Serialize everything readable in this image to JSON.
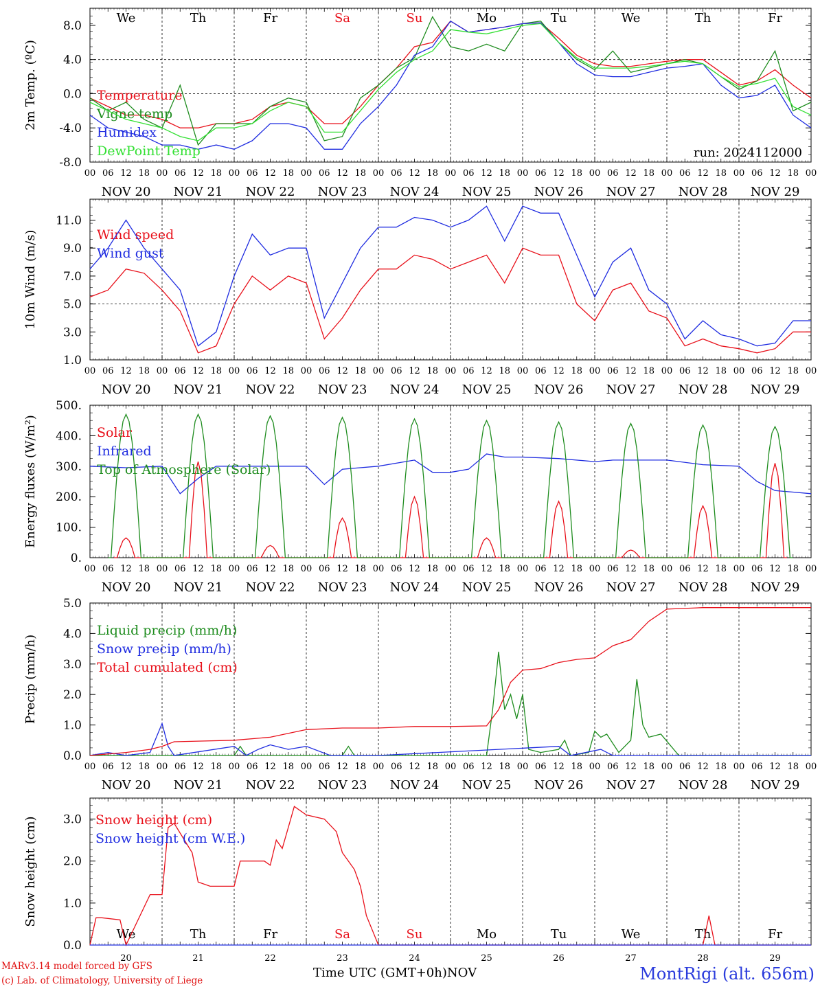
{
  "footer": {
    "credit_line1": "MARv3.14 model forced by GFS",
    "credit_line2": "(c) Lab. of Climatology, University of Liege",
    "time_label": "Time UTC (GMT+0h)",
    "month_label": "NOV",
    "station": "MontRigi (alt. 656m)",
    "run_label": "run: 2024112000"
  },
  "colors": {
    "red": "#e8101a",
    "green": "#1e8c1e",
    "blue": "#1f2ce0",
    "light_green": "#33e033",
    "day_red": "#e8101a"
  },
  "chart_data": [
    {
      "type": "line",
      "ylabel": "2m Temp. (ºC)",
      "ylim": [
        -8,
        10
      ],
      "yticks": [
        "8.0",
        "4.0",
        "0.0",
        "-4.0",
        "-8.0"
      ],
      "day_names": [
        "We",
        "Th",
        "Fr",
        "Sa",
        "Su",
        "Mo",
        "Tu",
        "We",
        "Th",
        "Fr"
      ],
      "day_labels": [
        "NOV 20",
        "NOV 21",
        "NOV 22",
        "NOV 23",
        "NOV 24",
        "NOV 25",
        "NOV 26",
        "NOV 27",
        "NOV 28",
        "NOV 29"
      ],
      "hour_ticks": [
        "00",
        "06",
        "12",
        "18"
      ],
      "x_unit": "hours since 2024-11-20 00 UTC",
      "dashed_y": [
        0,
        4
      ],
      "series": [
        {
          "name": "Temperature",
          "color": "red",
          "x": [
            0,
            6,
            12,
            18,
            24,
            30,
            36,
            42,
            48,
            54,
            60,
            66,
            72,
            78,
            84,
            90,
            96,
            102,
            108,
            114,
            120,
            126,
            132,
            138,
            144,
            150,
            156,
            162,
            168,
            174,
            180,
            186,
            192,
            198,
            204,
            210,
            216,
            222,
            228,
            234,
            240
          ],
          "y": [
            -0.5,
            -1.5,
            -2.5,
            -2.5,
            -3,
            -4,
            -4,
            -3.5,
            -3.5,
            -3,
            -1.5,
            -1,
            -1.5,
            -3.5,
            -3.5,
            -1.5,
            1,
            3,
            5.5,
            6,
            8.5,
            7.2,
            7.5,
            7.8,
            8.2,
            8.3,
            6.5,
            4.5,
            3.5,
            3.2,
            3.2,
            3.5,
            3.8,
            4,
            4,
            2.5,
            1,
            1.5,
            2.8,
            1,
            -0.5
          ]
        },
        {
          "name": "Vigne temp",
          "color": "green",
          "x": [
            0,
            6,
            12,
            18,
            24,
            30,
            36,
            42,
            48,
            54,
            60,
            66,
            72,
            78,
            84,
            90,
            96,
            102,
            108,
            114,
            120,
            126,
            132,
            138,
            144,
            150,
            156,
            162,
            168,
            174,
            180,
            186,
            192,
            198,
            204,
            210,
            216,
            222,
            228,
            234,
            240
          ],
          "y": [
            -0.5,
            -2,
            -1,
            -3,
            -4,
            1,
            -6,
            -3.5,
            -3.5,
            -3.5,
            -1.5,
            -0.5,
            -1,
            -5.5,
            -5,
            -0.5,
            1,
            3,
            4.2,
            9,
            5.5,
            5,
            5.8,
            5,
            8.2,
            8.5,
            6,
            4,
            2.8,
            5,
            2.5,
            3,
            3.5,
            4,
            3.5,
            2,
            0.5,
            1.5,
            5,
            -2,
            -1
          ]
        },
        {
          "name": "Humidex",
          "color": "blue",
          "x": [
            0,
            6,
            12,
            18,
            24,
            30,
            36,
            42,
            48,
            54,
            60,
            66,
            72,
            78,
            84,
            90,
            96,
            102,
            108,
            114,
            120,
            126,
            132,
            138,
            144,
            150,
            156,
            162,
            168,
            174,
            180,
            186,
            192,
            198,
            204,
            210,
            216,
            222,
            228,
            234,
            240
          ],
          "y": [
            -2.5,
            -4,
            -4.5,
            -5,
            -6,
            -6,
            -6.5,
            -6,
            -6.5,
            -5.5,
            -3.5,
            -3.5,
            -4,
            -6.5,
            -6.5,
            -3.5,
            -1.5,
            1,
            4.5,
            5.5,
            8.5,
            7.2,
            7.5,
            7.8,
            8.2,
            8.3,
            6,
            3.5,
            2.2,
            2,
            2,
            2.5,
            3,
            3.2,
            3.5,
            1,
            -0.5,
            -0.2,
            1,
            -2.5,
            -4
          ]
        },
        {
          "name": "DewPoint Temp",
          "color": "light_green",
          "x": [
            0,
            6,
            12,
            18,
            24,
            30,
            36,
            42,
            48,
            54,
            60,
            66,
            72,
            78,
            84,
            90,
            96,
            102,
            108,
            114,
            120,
            126,
            132,
            138,
            144,
            150,
            156,
            162,
            168,
            174,
            180,
            186,
            192,
            198,
            204,
            210,
            216,
            222,
            228,
            234,
            240
          ],
          "y": [
            -1,
            -2,
            -3,
            -3.5,
            -4,
            -5,
            -5.5,
            -4,
            -4,
            -3.5,
            -2,
            -1,
            -1.5,
            -4.5,
            -4.5,
            -2,
            0.5,
            2.5,
            4,
            5,
            7.5,
            7.2,
            7,
            7.5,
            8,
            8.2,
            6,
            4.2,
            3,
            3,
            3,
            3.2,
            3.5,
            3.8,
            3.5,
            2,
            0.8,
            1.2,
            1.8,
            -1.5,
            -2.5
          ]
        }
      ]
    },
    {
      "type": "line",
      "ylabel": "10m Wind (m/s)",
      "ylim": [
        1,
        12.5
      ],
      "yticks": [
        "11.0",
        "9.0",
        "7.0",
        "5.0",
        "3.0",
        "1.0"
      ],
      "day_labels": [
        "NOV 20",
        "NOV 21",
        "NOV 22",
        "NOV 23",
        "NOV 24",
        "NOV 25",
        "NOV 26",
        "NOV 27",
        "NOV 28",
        "NOV 29"
      ],
      "hour_ticks": [
        "00",
        "06",
        "12",
        "18"
      ],
      "dashed_y": [
        5
      ],
      "series": [
        {
          "name": "Wind speed",
          "color": "red",
          "x": [
            0,
            6,
            12,
            18,
            24,
            30,
            36,
            42,
            48,
            54,
            60,
            66,
            72,
            78,
            84,
            90,
            96,
            102,
            108,
            114,
            120,
            126,
            132,
            138,
            144,
            150,
            156,
            162,
            168,
            174,
            180,
            186,
            192,
            198,
            204,
            210,
            216,
            222,
            228,
            234,
            240
          ],
          "y": [
            5.5,
            6,
            7.5,
            7.2,
            6,
            4.5,
            1.5,
            2,
            5,
            7,
            6,
            7,
            6.5,
            2.5,
            4,
            6,
            7.5,
            7.5,
            8.5,
            8.2,
            7.5,
            8,
            8.5,
            6.5,
            9,
            8.5,
            8.5,
            5,
            3.8,
            6,
            6.5,
            4.5,
            4,
            2,
            2.5,
            2,
            1.8,
            1.5,
            1.8,
            3,
            3
          ]
        },
        {
          "name": "Wind gust",
          "color": "blue",
          "x": [
            0,
            6,
            12,
            18,
            24,
            30,
            36,
            42,
            48,
            54,
            60,
            66,
            72,
            78,
            84,
            90,
            96,
            102,
            108,
            114,
            120,
            126,
            132,
            138,
            144,
            150,
            156,
            162,
            168,
            174,
            180,
            186,
            192,
            198,
            204,
            210,
            216,
            222,
            228,
            234,
            240
          ],
          "y": [
            7.5,
            9,
            11,
            9,
            7.5,
            6,
            2,
            3,
            7,
            10,
            8.5,
            9,
            9,
            4,
            6.5,
            9,
            10.5,
            10.5,
            11.2,
            11,
            10.5,
            11,
            12,
            9.5,
            12,
            11.5,
            11.5,
            8.5,
            5.5,
            8,
            9,
            6,
            5,
            2.5,
            3.8,
            2.8,
            2.5,
            2,
            2.2,
            3.8,
            3.8
          ]
        }
      ]
    },
    {
      "type": "line",
      "ylabel": "Energy fluxes (W/m²)",
      "ylim": [
        0,
        500
      ],
      "yticks": [
        "500.",
        "400.",
        "300.",
        "200.",
        "100.",
        "0."
      ],
      "day_labels": [
        "NOV 20",
        "NOV 21",
        "NOV 22",
        "NOV 23",
        "NOV 24",
        "NOV 25",
        "NOV 26",
        "NOV 27",
        "NOV 28",
        "NOV 29"
      ],
      "hour_ticks": [
        "00",
        "06",
        "12",
        "18"
      ],
      "dashed_y": [],
      "series": [
        {
          "name": "Solar",
          "color": "red",
          "peaks": [
            65,
            315,
            40,
            130,
            200,
            65,
            185,
            25,
            170,
            310
          ]
        },
        {
          "name": "Infrared",
          "color": "blue",
          "x": [
            0,
            12,
            24,
            30,
            36,
            42,
            48,
            60,
            72,
            78,
            84,
            96,
            108,
            114,
            120,
            126,
            132,
            138,
            144,
            156,
            168,
            174,
            180,
            192,
            204,
            216,
            222,
            228,
            234,
            240
          ],
          "y": [
            300,
            295,
            300,
            210,
            260,
            300,
            300,
            300,
            300,
            240,
            290,
            300,
            320,
            280,
            280,
            290,
            340,
            330,
            330,
            325,
            315,
            320,
            320,
            320,
            305,
            300,
            250,
            220,
            215,
            210
          ]
        },
        {
          "name": "Top of Atmosphere (Solar)",
          "color": "green",
          "peaks": [
            470,
            470,
            465,
            460,
            455,
            450,
            445,
            440,
            435,
            430
          ]
        }
      ]
    },
    {
      "type": "line",
      "ylabel": "Precip (mm/h)",
      "ylim": [
        0,
        5
      ],
      "yticks": [
        "5.0",
        "4.0",
        "3.0",
        "2.0",
        "1.0",
        "0.0"
      ],
      "day_labels": [
        "NOV 20",
        "NOV 21",
        "NOV 22",
        "NOV 23",
        "NOV 24",
        "NOV 25",
        "NOV 26",
        "NOV 27",
        "NOV 28",
        "NOV 29"
      ],
      "hour_ticks": [
        "00",
        "06",
        "12",
        "18"
      ],
      "dashed_y": [],
      "series": [
        {
          "name": "Liquid precip (mm/h)",
          "color": "green",
          "x": [
            0,
            48,
            50,
            52,
            84,
            86,
            88,
            132,
            134,
            136,
            138,
            140,
            142,
            144,
            146,
            150,
            156,
            158,
            160,
            166,
            168,
            170,
            172,
            176,
            180,
            182,
            184,
            186,
            190,
            196,
            240
          ],
          "y": [
            0,
            0,
            0.3,
            0,
            0,
            0.3,
            0,
            0,
            1.5,
            3.4,
            1.5,
            2,
            1.2,
            2,
            0.2,
            0.1,
            0.2,
            0.5,
            0,
            0.1,
            0.8,
            0.6,
            0.7,
            0.1,
            0.5,
            2.5,
            1,
            0.6,
            0.7,
            0,
            0
          ]
        },
        {
          "name": "Snow precip (mm/h)",
          "color": "blue",
          "x": [
            0,
            6,
            12,
            20,
            24,
            26,
            28,
            48,
            52,
            56,
            60,
            66,
            72,
            80,
            84,
            96,
            156,
            160,
            170,
            174,
            240
          ],
          "y": [
            0,
            0.1,
            0,
            0.1,
            1.05,
            0.3,
            0,
            0.3,
            0,
            0.2,
            0.35,
            0.2,
            0.3,
            0,
            0,
            0,
            0.3,
            0,
            0.2,
            0,
            0
          ]
        },
        {
          "name": "Total cumulated (cm)",
          "color": "red",
          "x": [
            0,
            12,
            20,
            24,
            28,
            36,
            48,
            60,
            72,
            84,
            96,
            108,
            120,
            132,
            136,
            140,
            144,
            150,
            156,
            162,
            168,
            174,
            180,
            186,
            192,
            204,
            216,
            228,
            240
          ],
          "y": [
            0,
            0.1,
            0.2,
            0.3,
            0.45,
            0.47,
            0.5,
            0.6,
            0.85,
            0.9,
            0.9,
            0.95,
            0.95,
            0.97,
            1.5,
            2.4,
            2.8,
            2.85,
            3.05,
            3.15,
            3.2,
            3.6,
            3.8,
            4.4,
            4.8,
            4.85,
            4.85,
            4.85,
            4.85
          ]
        }
      ]
    },
    {
      "type": "line",
      "ylabel": "Snow height (cm)",
      "ylim": [
        0,
        3.5
      ],
      "yticks": [
        "3.0",
        "2.0",
        "1.0",
        "0.0"
      ],
      "day_names": [
        "We",
        "Th",
        "Fr",
        "Sa",
        "Su",
        "Mo",
        "Tu",
        "We",
        "Th",
        "Fr"
      ],
      "day_numbers": [
        "20",
        "21",
        "22",
        "23",
        "24",
        "25",
        "26",
        "27",
        "28",
        "29"
      ],
      "series": [
        {
          "name": "Snow height (cm)",
          "color": "red",
          "x": [
            0,
            2,
            4,
            10,
            12,
            20,
            22,
            24,
            26,
            28,
            34,
            36,
            40,
            48,
            50,
            54,
            58,
            60,
            62,
            64,
            66,
            68,
            72,
            78,
            82,
            84,
            88,
            90,
            92,
            96,
            204,
            206,
            208,
            240
          ],
          "y": [
            0,
            0.65,
            0.65,
            0.6,
            0,
            1.2,
            1.2,
            1.2,
            2.8,
            2.9,
            2.2,
            1.5,
            1.4,
            1.4,
            2.0,
            2.0,
            2.0,
            1.9,
            2.5,
            2.3,
            2.8,
            3.3,
            3.1,
            3.0,
            2.7,
            2.2,
            1.8,
            1.4,
            0.7,
            0,
            0,
            0.7,
            0,
            0
          ]
        },
        {
          "name": "Snow height (cm W.E.)",
          "color": "blue",
          "x": [
            0,
            240
          ],
          "y": [
            0,
            0
          ]
        }
      ]
    }
  ]
}
